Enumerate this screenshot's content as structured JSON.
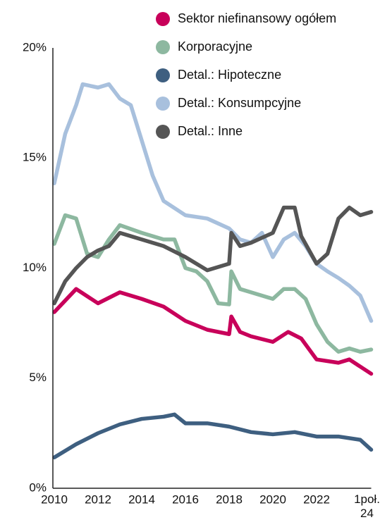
{
  "chart_data": {
    "type": "line",
    "legend": "top-right",
    "xlim": [
      2010,
      2024.5
    ],
    "xticks": [
      2010,
      2012,
      2014,
      2016,
      2018,
      2020,
      2022,
      {
        "value": 2024.5,
        "label": "1poł. 24"
      }
    ],
    "ylim": [
      0,
      20
    ],
    "yticks": [
      {
        "value": 0,
        "label": "0%"
      },
      {
        "value": 5,
        "label": "5%"
      },
      {
        "value": 10,
        "label": "10%"
      },
      {
        "value": 15,
        "label": "15%"
      },
      {
        "value": 20,
        "label": "20%"
      }
    ],
    "series": [
      {
        "name": "Sektor niefinansowy ogółem",
        "color": "#c8005a",
        "x": [
          2010,
          2011,
          2012,
          2013,
          2014,
          2015,
          2016,
          2017,
          2018,
          2018.1,
          2018.5,
          2019,
          2020,
          2020.7,
          2021.3,
          2022,
          2023,
          2023.5,
          2024.5
        ],
        "values": [
          8.0,
          9.05,
          8.4,
          8.9,
          8.6,
          8.25,
          7.6,
          7.2,
          7.0,
          7.8,
          7.1,
          6.9,
          6.65,
          7.1,
          6.8,
          5.85,
          5.7,
          5.85,
          5.2
        ]
      },
      {
        "name": "Korporacyjne",
        "color": "#8db8a0",
        "x": [
          2010,
          2010.5,
          2011,
          2011.5,
          2012,
          2012.5,
          2013,
          2014,
          2015,
          2015.5,
          2016,
          2016.5,
          2017,
          2017.5,
          2018,
          2018.1,
          2018.5,
          2019,
          2020,
          2020.5,
          2021,
          2021.5,
          2022,
          2022.5,
          2023,
          2023.5,
          2024,
          2024.5
        ],
        "values": [
          11.1,
          12.4,
          12.25,
          10.65,
          10.5,
          11.3,
          11.95,
          11.6,
          11.3,
          11.3,
          10.0,
          9.85,
          9.4,
          8.4,
          8.35,
          9.85,
          9.05,
          8.9,
          8.6,
          9.05,
          9.05,
          8.6,
          7.45,
          6.65,
          6.2,
          6.35,
          6.2,
          6.3
        ]
      },
      {
        "name": "Detal.: Hipoteczne",
        "color": "#3e5f80",
        "x": [
          2010,
          2011,
          2012,
          2013,
          2014,
          2015,
          2015.5,
          2016,
          2017,
          2018,
          2019,
          2020,
          2021,
          2022,
          2023,
          2024,
          2024.5
        ],
        "values": [
          1.4,
          2.0,
          2.5,
          2.9,
          3.15,
          3.25,
          3.35,
          2.95,
          2.95,
          2.8,
          2.55,
          2.45,
          2.55,
          2.35,
          2.35,
          2.2,
          1.75
        ]
      },
      {
        "name": "Detal.: Konsumpcyjne",
        "color": "#a8c0dd",
        "x": [
          2010,
          2010.5,
          2011,
          2011.3,
          2012,
          2012.5,
          2013,
          2013.5,
          2014,
          2014.5,
          2015,
          2016,
          2017,
          2018,
          2018.5,
          2019,
          2019.5,
          2020,
          2020.5,
          2021,
          2021.5,
          2022,
          2022.5,
          2023,
          2023.5,
          2024,
          2024.5
        ],
        "values": [
          13.85,
          16.1,
          17.4,
          18.35,
          18.2,
          18.35,
          17.7,
          17.4,
          15.8,
          14.2,
          13.05,
          12.4,
          12.25,
          11.8,
          11.3,
          11.15,
          11.6,
          10.5,
          11.3,
          11.6,
          11.0,
          10.2,
          9.85,
          9.55,
          9.2,
          8.75,
          7.6
        ]
      },
      {
        "name": "Detal.: Inne",
        "color": "#555555",
        "x": [
          2010,
          2010.5,
          2011,
          2011.5,
          2012,
          2012.5,
          2013,
          2013.5,
          2014,
          2015,
          2016,
          2017,
          2018,
          2018.1,
          2018.5,
          2019,
          2020,
          2020.5,
          2021,
          2021.3,
          2022,
          2022.5,
          2023,
          2023.5,
          2024,
          2024.5
        ],
        "values": [
          8.4,
          9.4,
          10.0,
          10.5,
          10.8,
          11.0,
          11.6,
          11.45,
          11.3,
          11.0,
          10.5,
          9.9,
          10.2,
          11.6,
          11.0,
          11.15,
          11.6,
          12.75,
          12.75,
          11.45,
          10.2,
          10.65,
          12.25,
          12.75,
          12.4,
          12.55
        ]
      }
    ]
  }
}
